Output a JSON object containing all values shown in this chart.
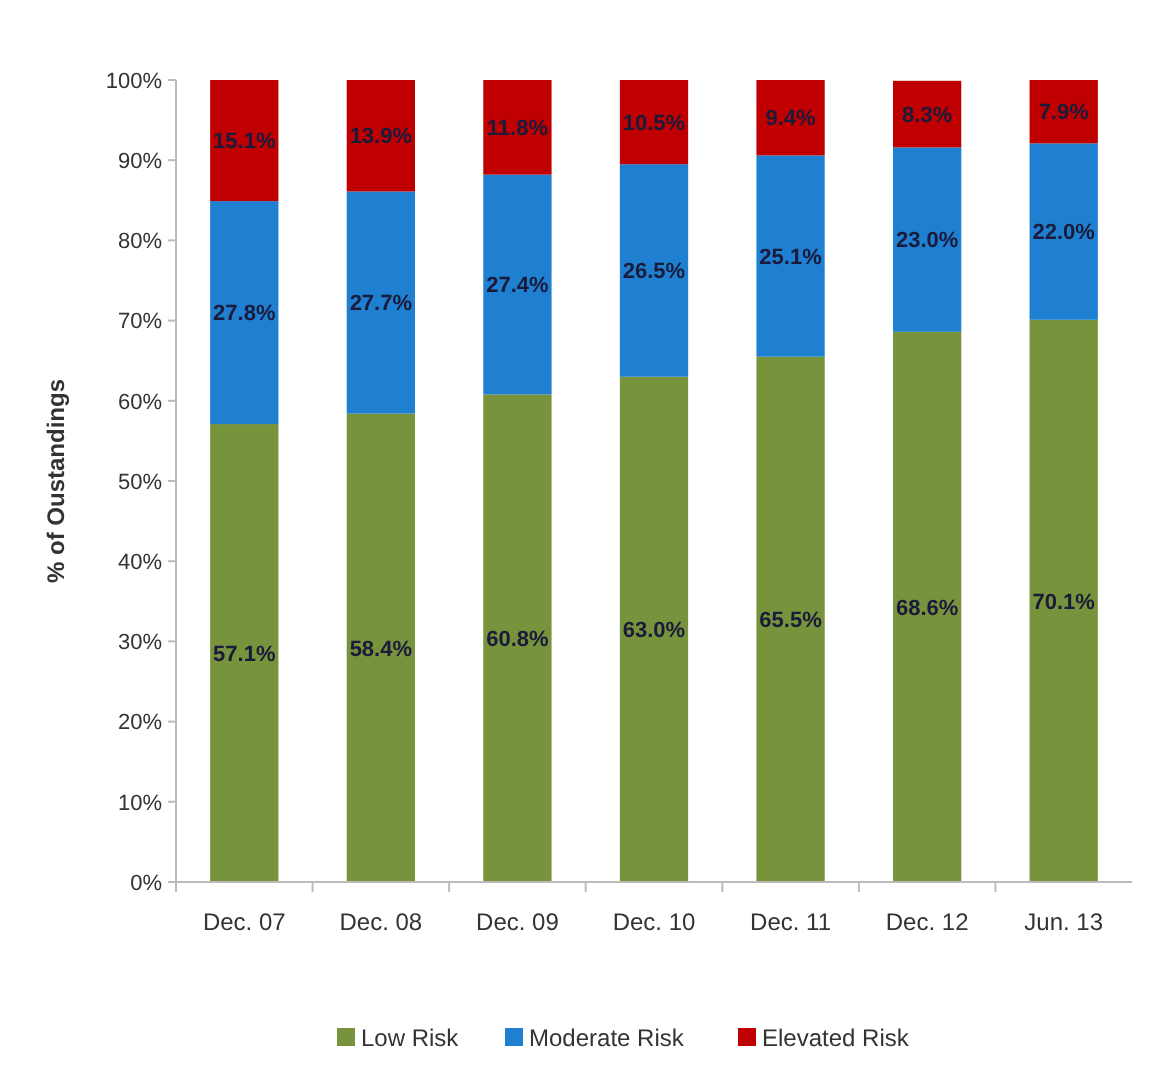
{
  "chart_data": {
    "type": "bar",
    "stacked": true,
    "ylabel": "% of Oustandings",
    "categories": [
      "Dec. 07",
      "Dec. 08",
      "Dec. 09",
      "Dec. 10",
      "Dec. 11",
      "Dec. 12",
      "Jun. 13"
    ],
    "series": [
      {
        "name": "Low Risk",
        "color": "#77933c",
        "values": [
          57.1,
          58.4,
          60.8,
          63.0,
          65.5,
          68.6,
          70.1
        ],
        "value_labels": [
          "57.1%",
          "58.4%",
          "60.8%",
          "63.0%",
          "65.5%",
          "68.6%",
          "70.1%"
        ]
      },
      {
        "name": "Moderate Risk",
        "color": "#1f7fd0",
        "values": [
          27.8,
          27.7,
          27.4,
          26.5,
          25.1,
          23.0,
          22.0
        ],
        "value_labels": [
          "27.8%",
          "27.7%",
          "27.4%",
          "26.5%",
          "25.1%",
          "23.0%",
          "22.0%"
        ]
      },
      {
        "name": "Elevated Risk",
        "color": "#c00000",
        "values": [
          15.1,
          13.9,
          11.8,
          10.5,
          9.4,
          8.3,
          7.9
        ],
        "value_labels": [
          "15.1%",
          "13.9%",
          "11.8%",
          "10.5%",
          "9.4%",
          "8.3%",
          "7.9%"
        ]
      }
    ],
    "ylim": [
      0,
      100
    ],
    "yticks": [
      {
        "value": 0,
        "label": "0%"
      },
      {
        "value": 10,
        "label": "10%"
      },
      {
        "value": 20,
        "label": "20%"
      },
      {
        "value": 30,
        "label": "30%"
      },
      {
        "value": 40,
        "label": "40%"
      },
      {
        "value": 50,
        "label": "50%"
      },
      {
        "value": 60,
        "label": "60%"
      },
      {
        "value": 70,
        "label": "70%"
      },
      {
        "value": 80,
        "label": "80%"
      },
      {
        "value": 90,
        "label": "90%"
      },
      {
        "value": 100,
        "label": "100%"
      }
    ],
    "grid": false,
    "legend": "bottom"
  }
}
